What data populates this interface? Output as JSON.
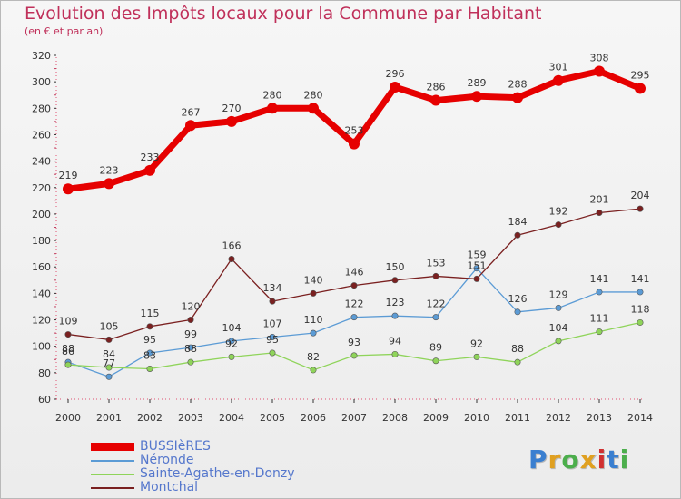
{
  "chart_data": {
    "type": "line",
    "title": "Evolution des Impôts locaux pour la Commune par Habitant",
    "subtitle": "(en € et par an)",
    "categories": [
      "2000",
      "2001",
      "2002",
      "2003",
      "2004",
      "2005",
      "2006",
      "2007",
      "2008",
      "2009",
      "2010",
      "2011",
      "2012",
      "2013",
      "2014"
    ],
    "ylim": [
      60,
      320
    ],
    "yticks": [
      60,
      80,
      100,
      120,
      140,
      160,
      180,
      200,
      220,
      240,
      260,
      280,
      300,
      320
    ],
    "grid": false,
    "legend_position": "bottom-left",
    "series": [
      {
        "name": "BUSSIèRES",
        "color": "#e60000",
        "values": [
          219,
          223,
          233,
          267,
          270,
          280,
          280,
          253,
          296,
          286,
          289,
          288,
          301,
          308,
          295
        ]
      },
      {
        "name": "Néronde",
        "color": "#5b9bd5",
        "values": [
          88,
          77,
          95,
          99,
          104,
          107,
          110,
          122,
          123,
          122,
          159,
          126,
          129,
          141,
          141
        ]
      },
      {
        "name": "Sainte-Agathe-en-Donzy",
        "color": "#8fd45a",
        "values": [
          86,
          84,
          83,
          88,
          92,
          95,
          82,
          93,
          94,
          89,
          92,
          88,
          104,
          111,
          118
        ]
      },
      {
        "name": "Montchal",
        "color": "#7a2020",
        "values": [
          109,
          105,
          115,
          120,
          166,
          134,
          140,
          146,
          150,
          153,
          151,
          184,
          192,
          201,
          204
        ]
      }
    ],
    "labels": [
      {
        "series": 0,
        "text": [
          "219",
          "223",
          "233",
          "267",
          "270",
          "280",
          "280",
          "253",
          "296",
          "286",
          "289",
          "288",
          "301",
          "308",
          "295"
        ]
      },
      {
        "series": 1,
        "text": [
          "88",
          "77",
          "95",
          "99",
          "104",
          "107",
          "110",
          "122",
          "123",
          "122",
          "159",
          "126",
          "129",
          "141",
          "141"
        ]
      },
      {
        "series": 2,
        "text": [
          "86",
          "84",
          "83",
          "88",
          "92",
          "95",
          "82",
          "93",
          "94",
          "89",
          "92",
          "88",
          "104",
          "111",
          "118"
        ]
      },
      {
        "series": 3,
        "text": [
          "109",
          "105",
          "115",
          "120",
          "166",
          "134",
          "140",
          "146",
          "150",
          "153",
          "151",
          "184",
          "192",
          "201",
          "204"
        ]
      }
    ]
  },
  "logo": {
    "letters": [
      "P",
      "r",
      "o",
      "x",
      "i",
      "t",
      "i"
    ],
    "colors": [
      "#3a7fd0",
      "#e0a020",
      "#4cae4c",
      "#e0a020",
      "#d03030",
      "#3a7fd0",
      "#4cae4c"
    ]
  }
}
